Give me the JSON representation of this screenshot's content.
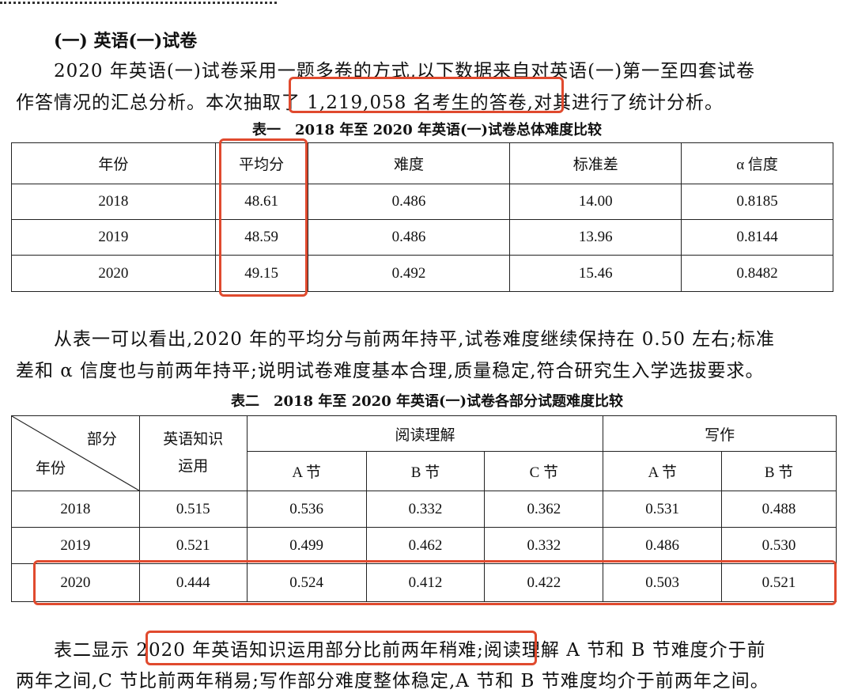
{
  "heading": "(一) 英语(一)试卷",
  "para1": [
    "2020 年英语(一)试卷采用一题多卷的方式,以下数据来自对英语(一)第一至四套试卷",
    "作答情况的汇总分析。本次抽取了 1,219,058 名考生的答卷,对其进行了统计分析。"
  ],
  "table1": {
    "caption": "表一　2018 年至 2020 年英语(一)试卷总体难度比较",
    "headers": [
      "年份",
      "平均分",
      "难度",
      "标准差",
      "α 信度"
    ],
    "rows": [
      [
        "2018",
        "48.61",
        "0.486",
        "14.00",
        "0.8185"
      ],
      [
        "2019",
        "48.59",
        "0.486",
        "13.96",
        "0.8144"
      ],
      [
        "2020",
        "49.15",
        "0.492",
        "15.46",
        "0.8482"
      ]
    ]
  },
  "para2": [
    "从表一可以看出,2020 年的平均分与前两年持平,试卷难度继续保持在 0.50 左右;标准",
    "差和 α 信度也与前两年持平;说明试卷难度基本合理,质量稳定,符合研究生入学选拔要求。"
  ],
  "table2": {
    "caption": "表二　2018 年至 2020 年英语(一)试卷各部分试题难度比较",
    "corner_top": "部分",
    "corner_bottom": "年份",
    "knowledge": "英语知识运用",
    "reading": "阅读理解",
    "writing": "写作",
    "sub": [
      "A 节",
      "B 节",
      "C 节",
      "A 节",
      "B 节"
    ],
    "rows": [
      [
        "2018",
        "0.515",
        "0.536",
        "0.332",
        "0.362",
        "0.531",
        "0.488"
      ],
      [
        "2019",
        "0.521",
        "0.499",
        "0.462",
        "0.332",
        "0.486",
        "0.530"
      ],
      [
        "2020",
        "0.444",
        "0.524",
        "0.412",
        "0.422",
        "0.503",
        "0.521"
      ]
    ]
  },
  "para3": [
    "表二显示 2020 年英语知识运用部分比前两年稍难;阅读理解 A 节和 B 节难度介于前",
    "两年之间,C 节比前两年稍易;写作部分难度整体稳定,A 节和 B 节难度均介于前两年之间。"
  ],
  "highlight_color": "#e04a2e"
}
